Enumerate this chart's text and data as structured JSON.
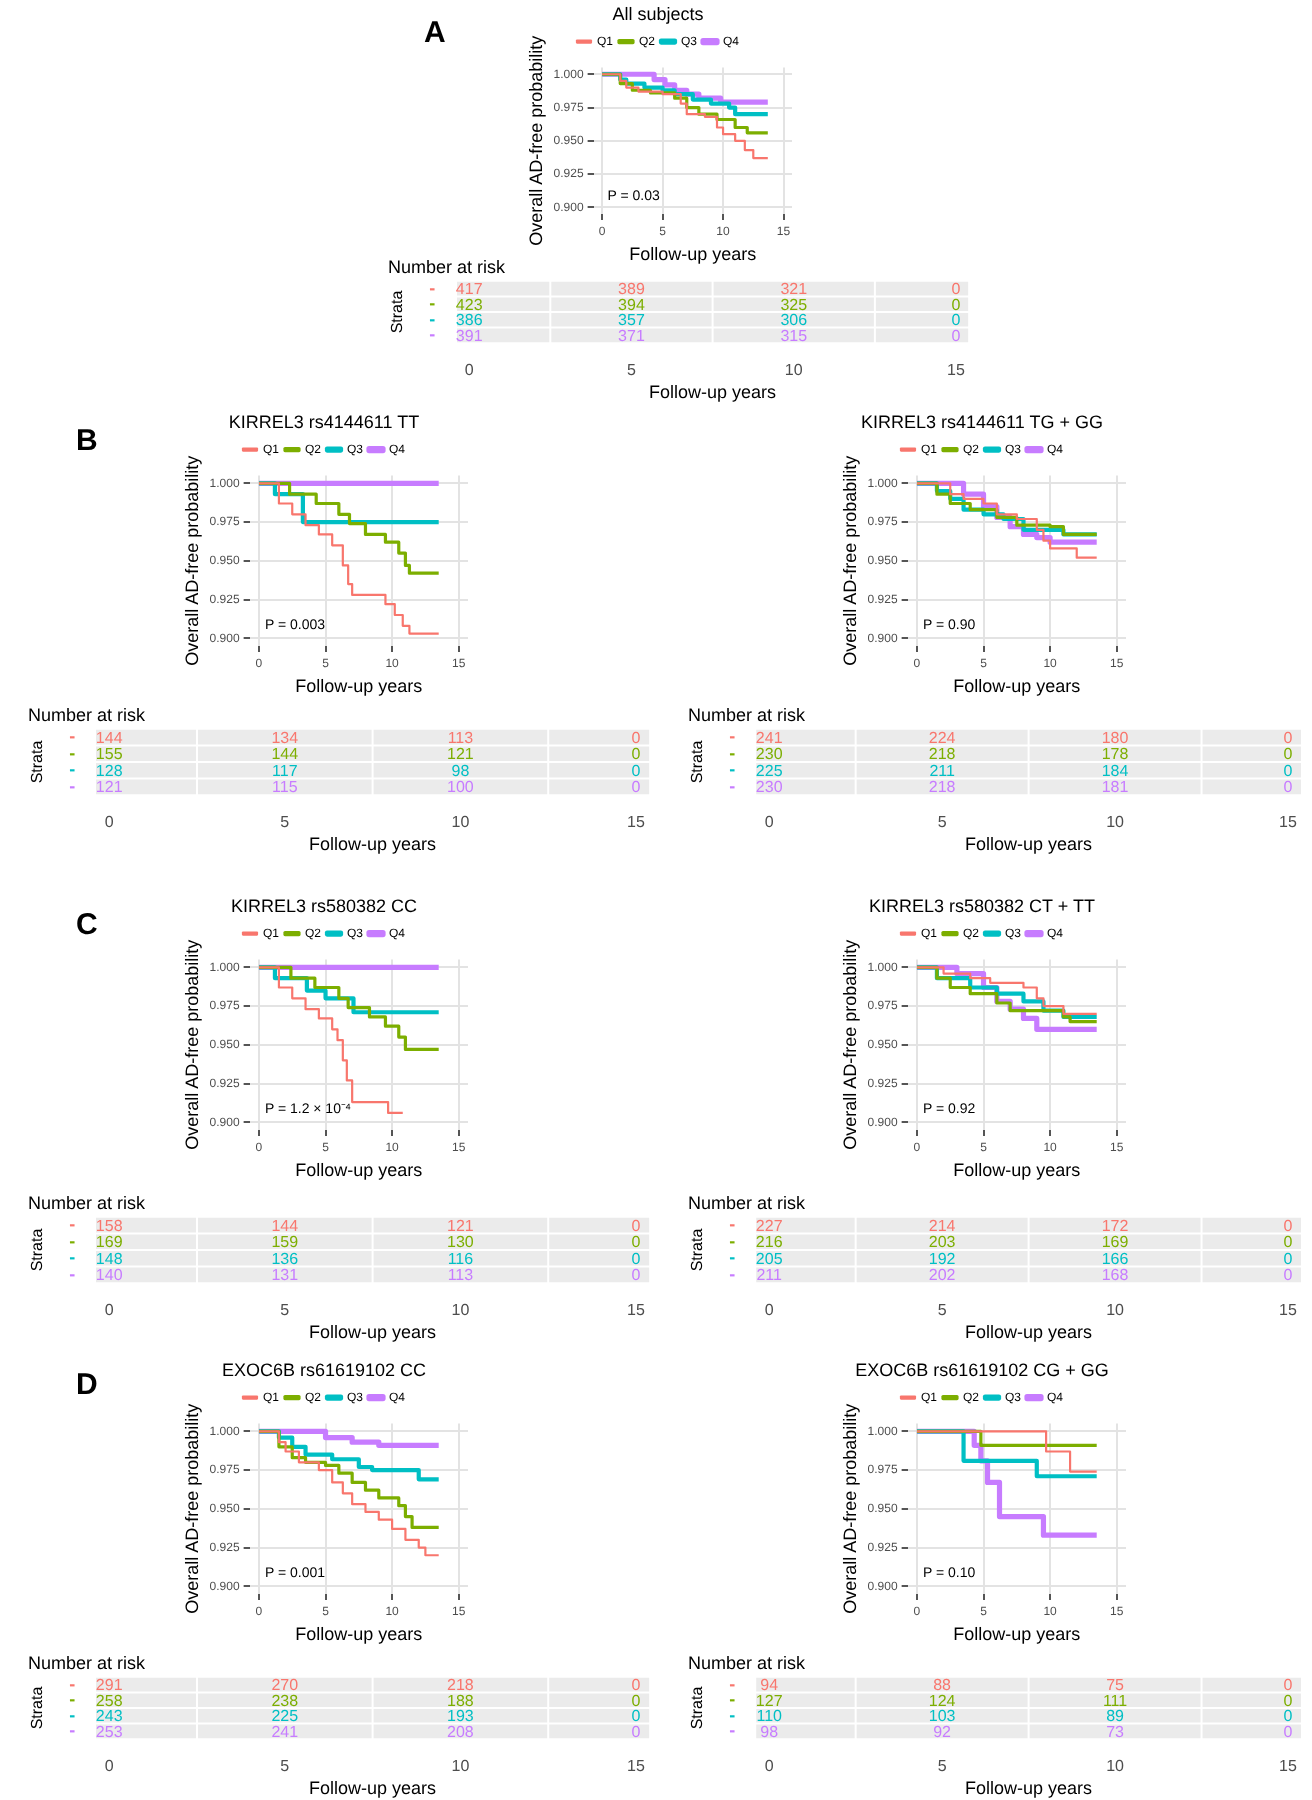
{
  "chart_data": [
    {
      "type": "step",
      "title": "All subjects",
      "xlabel": "Follow-up years",
      "ylabel": "Overall AD-free probability",
      "legend": "top",
      "grid": true,
      "xlim": [
        -0.7,
        15.7
      ],
      "ylim": [
        0.895,
        1.005
      ],
      "xticks": [
        0,
        5,
        10,
        15
      ],
      "yticks": [
        {
          "value": 0.9,
          "label": "0.900"
        },
        {
          "value": 0.925,
          "label": "0.925"
        },
        {
          "value": 0.95,
          "label": "0.950"
        },
        {
          "value": 0.975,
          "label": "0.975"
        },
        {
          "value": 1,
          "label": "1.000"
        }
      ],
      "annotations": [
        "A",
        "P = 0.03"
      ],
      "series": [
        {
          "name": "Q1",
          "color": "#f8766d",
          "x": [
            0,
            1.5,
            2,
            3,
            5,
            6.5,
            7,
            8.5,
            9.5,
            10,
            11,
            11.8,
            12.5,
            13.7
          ],
          "values": [
            1,
            0.995,
            0.99,
            0.987,
            0.985,
            0.978,
            0.97,
            0.968,
            0.96,
            0.955,
            0.95,
            0.943,
            0.937,
            0.937
          ]
        },
        {
          "name": "Q2",
          "color": "#7cae00",
          "x": [
            0,
            1.5,
            2.5,
            4,
            6,
            7,
            8,
            9.5,
            11,
            12,
            13.7
          ],
          "values": [
            1,
            0.993,
            0.988,
            0.986,
            0.982,
            0.975,
            0.97,
            0.966,
            0.96,
            0.956,
            0.956
          ]
        },
        {
          "name": "Q3",
          "color": "#00bfc4",
          "x": [
            0,
            1.5,
            2,
            3.5,
            5,
            6,
            7.5,
            9,
            10.5,
            11,
            13.7
          ],
          "values": [
            1,
            0.996,
            0.993,
            0.99,
            0.988,
            0.985,
            0.981,
            0.978,
            0.975,
            0.97,
            0.97
          ]
        },
        {
          "name": "Q4",
          "color": "#c77cff",
          "x": [
            0,
            4.3,
            5.2,
            6,
            7,
            8,
            9.8,
            13.7
          ],
          "values": [
            1,
            0.996,
            0.992,
            0.988,
            0.985,
            0.982,
            0.979,
            0.979
          ]
        }
      ]
    },
    {
      "type": "heatmap",
      "title": "Number at risk",
      "xlabel": "Follow-up years",
      "ylabel": "Strata",
      "categories": [
        "0",
        "5",
        "10",
        "15"
      ],
      "y_categories": [
        "-",
        "-",
        "-",
        "-"
      ],
      "colors": [
        "#f8766d",
        "#7cae00",
        "#00bfc4",
        "#c77cff"
      ],
      "data_labels": true,
      "cells": [
        [
          417,
          389,
          321,
          0
        ],
        [
          423,
          394,
          325,
          0
        ],
        [
          386,
          357,
          306,
          0
        ],
        [
          391,
          371,
          315,
          0
        ]
      ]
    },
    {
      "type": "step",
      "title": "KIRREL3 rs4144611 TT",
      "xlabel": "Follow-up years",
      "ylabel": "Overall AD-free probability",
      "legend": "top",
      "grid": true,
      "xlim": [
        -0.7,
        15.7
      ],
      "ylim": [
        0.895,
        1.005
      ],
      "xticks": [
        0,
        5,
        10,
        15
      ],
      "yticks": [
        {
          "value": 0.9,
          "label": "0.900"
        },
        {
          "value": 0.925,
          "label": "0.925"
        },
        {
          "value": 0.95,
          "label": "0.950"
        },
        {
          "value": 0.975,
          "label": "0.975"
        },
        {
          "value": 1,
          "label": "1.000"
        }
      ],
      "annotations": [
        "B",
        "P = 0.003"
      ],
      "series": [
        {
          "name": "Q1",
          "color": "#f8766d",
          "x": [
            0,
            1.5,
            2.5,
            3.5,
            4.5,
            5.5,
            6.3,
            6.7,
            7,
            9.5,
            10.2,
            10.8,
            11.3,
            13.5
          ],
          "values": [
            1,
            0.987,
            0.98,
            0.973,
            0.967,
            0.96,
            0.947,
            0.935,
            0.928,
            0.922,
            0.915,
            0.908,
            0.903,
            0.903
          ]
        },
        {
          "name": "Q2",
          "color": "#7cae00",
          "x": [
            0,
            2.3,
            4.3,
            6,
            6.8,
            8,
            9.5,
            10.5,
            11,
            11.3,
            13.5
          ],
          "values": [
            1,
            0.993,
            0.987,
            0.98,
            0.974,
            0.967,
            0.962,
            0.955,
            0.947,
            0.942,
            0.942
          ]
        },
        {
          "name": "Q3",
          "color": "#00bfc4",
          "x": [
            0,
            1.2,
            3.3,
            13.5
          ],
          "values": [
            1,
            0.993,
            0.975,
            0.975
          ]
        },
        {
          "name": "Q4",
          "color": "#c77cff",
          "x": [
            0,
            13.5
          ],
          "values": [
            1,
            1
          ]
        }
      ]
    },
    {
      "type": "step",
      "title": "KIRREL3 rs4144611 TG + GG",
      "xlabel": "Follow-up years",
      "ylabel": "Overall AD-free probability",
      "legend": "top",
      "grid": true,
      "xlim": [
        -0.7,
        15.7
      ],
      "ylim": [
        0.895,
        1.005
      ],
      "xticks": [
        0,
        5,
        10,
        15
      ],
      "yticks": [
        {
          "value": 0.9,
          "label": "0.900"
        },
        {
          "value": 0.925,
          "label": "0.925"
        },
        {
          "value": 0.95,
          "label": "0.950"
        },
        {
          "value": 0.975,
          "label": "0.975"
        },
        {
          "value": 1,
          "label": "1.000"
        }
      ],
      "annotations": [
        "P = 0.90"
      ],
      "series": [
        {
          "name": "Q1",
          "color": "#f8766d",
          "x": [
            0,
            2.5,
            3.5,
            5,
            6,
            7.5,
            9,
            9.5,
            10,
            12,
            13.5
          ],
          "values": [
            1,
            0.993,
            0.99,
            0.987,
            0.98,
            0.977,
            0.97,
            0.963,
            0.958,
            0.952,
            0.952
          ]
        },
        {
          "name": "Q2",
          "color": "#7cae00",
          "x": [
            0,
            1.5,
            2.5,
            4,
            6,
            7.5,
            10,
            11,
            13.5
          ],
          "values": [
            1,
            0.993,
            0.987,
            0.983,
            0.978,
            0.973,
            0.972,
            0.967,
            0.967
          ]
        },
        {
          "name": "Q3",
          "color": "#00bfc4",
          "x": [
            0,
            1.5,
            2.5,
            3.5,
            5,
            6.5,
            8,
            11,
            13.5
          ],
          "values": [
            1,
            0.995,
            0.99,
            0.983,
            0.98,
            0.977,
            0.97,
            0.967,
            0.967
          ]
        },
        {
          "name": "Q4",
          "color": "#c77cff",
          "x": [
            0,
            3.5,
            5,
            6,
            7,
            8,
            9,
            10,
            13.5
          ],
          "values": [
            1,
            0.993,
            0.985,
            0.978,
            0.972,
            0.967,
            0.965,
            0.962,
            0.962
          ]
        }
      ]
    },
    {
      "type": "heatmap",
      "title": "Number at risk",
      "xlabel": "Follow-up years",
      "ylabel": "Strata",
      "categories": [
        "0",
        "5",
        "10",
        "15"
      ],
      "y_categories": [
        "-",
        "-",
        "-",
        "-"
      ],
      "colors": [
        "#f8766d",
        "#7cae00",
        "#00bfc4",
        "#c77cff"
      ],
      "data_labels": true,
      "cells": [
        [
          144,
          134,
          113,
          0
        ],
        [
          155,
          144,
          121,
          0
        ],
        [
          128,
          117,
          98,
          0
        ],
        [
          121,
          115,
          100,
          0
        ]
      ]
    },
    {
      "type": "heatmap",
      "title": "Number at risk",
      "xlabel": "Follow-up years",
      "ylabel": "Strata",
      "categories": [
        "0",
        "5",
        "10",
        "15"
      ],
      "y_categories": [
        "-",
        "-",
        "-",
        "-"
      ],
      "colors": [
        "#f8766d",
        "#7cae00",
        "#00bfc4",
        "#c77cff"
      ],
      "data_labels": true,
      "cells": [
        [
          241,
          224,
          180,
          0
        ],
        [
          230,
          218,
          178,
          0
        ],
        [
          225,
          211,
          184,
          0
        ],
        [
          230,
          218,
          181,
          0
        ]
      ]
    },
    {
      "type": "step",
      "title": "KIRREL3 rs580382 CC",
      "xlabel": "Follow-up years",
      "ylabel": "Overall AD-free probability",
      "legend": "top",
      "grid": true,
      "xlim": [
        -0.7,
        15.7
      ],
      "ylim": [
        0.895,
        1.005
      ],
      "xticks": [
        0,
        5,
        10,
        15
      ],
      "yticks": [
        {
          "value": 0.9,
          "label": "0.900"
        },
        {
          "value": 0.925,
          "label": "0.925"
        },
        {
          "value": 0.95,
          "label": "0.950"
        },
        {
          "value": 0.975,
          "label": "0.975"
        },
        {
          "value": 1,
          "label": "1.000"
        }
      ],
      "annotations": [
        "C",
        "P = 1.2 × 10⁻⁴"
      ],
      "series": [
        {
          "name": "Q1",
          "color": "#f8766d",
          "x": [
            0,
            1.5,
            2.5,
            3.5,
            4.5,
            5.5,
            5.9,
            6.3,
            6.6,
            7,
            9.7,
            10.8
          ],
          "values": [
            1,
            0.987,
            0.98,
            0.973,
            0.967,
            0.96,
            0.953,
            0.94,
            0.927,
            0.913,
            0.906,
            0.906
          ]
        },
        {
          "name": "Q2",
          "color": "#7cae00",
          "x": [
            0,
            2.4,
            4.2,
            6,
            6.7,
            8.3,
            9.5,
            10.5,
            11,
            13.5
          ],
          "values": [
            1,
            0.993,
            0.987,
            0.98,
            0.974,
            0.968,
            0.962,
            0.955,
            0.947,
            0.947
          ]
        },
        {
          "name": "Q3",
          "color": "#00bfc4",
          "x": [
            0,
            1.2,
            3.6,
            5,
            7.1,
            13.5
          ],
          "values": [
            1,
            0.993,
            0.985,
            0.98,
            0.971,
            0.971
          ]
        },
        {
          "name": "Q4",
          "color": "#c77cff",
          "x": [
            0,
            13.5
          ],
          "values": [
            1,
            1
          ]
        }
      ]
    },
    {
      "type": "step",
      "title": "KIRREL3 rs580382 CT + TT",
      "xlabel": "Follow-up years",
      "ylabel": "Overall AD-free probability",
      "legend": "top",
      "grid": true,
      "xlim": [
        -0.7,
        15.7
      ],
      "ylim": [
        0.895,
        1.005
      ],
      "xticks": [
        0,
        5,
        10,
        15
      ],
      "yticks": [
        {
          "value": 0.9,
          "label": "0.900"
        },
        {
          "value": 0.925,
          "label": "0.925"
        },
        {
          "value": 0.95,
          "label": "0.950"
        },
        {
          "value": 0.975,
          "label": "0.975"
        },
        {
          "value": 1,
          "label": "1.000"
        }
      ],
      "annotations": [
        "P = 0.92"
      ],
      "series": [
        {
          "name": "Q1",
          "color": "#f8766d",
          "x": [
            0,
            2,
            4,
            5.5,
            8,
            9,
            9.5,
            11,
            13.5
          ],
          "values": [
            1,
            0.996,
            0.993,
            0.99,
            0.987,
            0.98,
            0.975,
            0.97,
            0.97
          ]
        },
        {
          "name": "Q2",
          "color": "#7cae00",
          "x": [
            0,
            1.5,
            2.5,
            4,
            6,
            7,
            11,
            11.5,
            13.5
          ],
          "values": [
            1,
            0.993,
            0.987,
            0.983,
            0.977,
            0.972,
            0.968,
            0.965,
            0.965
          ]
        },
        {
          "name": "Q3",
          "color": "#00bfc4",
          "x": [
            0,
            1.5,
            4,
            6,
            8,
            9.5,
            11,
            13.5
          ],
          "values": [
            1,
            0.993,
            0.987,
            0.983,
            0.978,
            0.972,
            0.968,
            0.968
          ]
        },
        {
          "name": "Q4",
          "color": "#c77cff",
          "x": [
            0,
            3,
            5,
            6,
            7,
            8,
            9,
            13.5
          ],
          "values": [
            1,
            0.996,
            0.987,
            0.978,
            0.973,
            0.967,
            0.96,
            0.96
          ]
        }
      ]
    },
    {
      "type": "heatmap",
      "title": "Number at risk",
      "xlabel": "Follow-up years",
      "ylabel": "Strata",
      "categories": [
        "0",
        "5",
        "10",
        "15"
      ],
      "y_categories": [
        "-",
        "-",
        "-",
        "-"
      ],
      "colors": [
        "#f8766d",
        "#7cae00",
        "#00bfc4",
        "#c77cff"
      ],
      "data_labels": true,
      "cells": [
        [
          158,
          144,
          121,
          0
        ],
        [
          169,
          159,
          130,
          0
        ],
        [
          148,
          136,
          116,
          0
        ],
        [
          140,
          131,
          113,
          0
        ]
      ]
    },
    {
      "type": "heatmap",
      "title": "Number at risk",
      "xlabel": "Follow-up years",
      "ylabel": "Strata",
      "categories": [
        "0",
        "5",
        "10",
        "15"
      ],
      "y_categories": [
        "-",
        "-",
        "-",
        "-"
      ],
      "colors": [
        "#f8766d",
        "#7cae00",
        "#00bfc4",
        "#c77cff"
      ],
      "data_labels": true,
      "cells": [
        [
          227,
          214,
          172,
          0
        ],
        [
          216,
          203,
          169,
          0
        ],
        [
          205,
          192,
          166,
          0
        ],
        [
          211,
          202,
          168,
          0
        ]
      ]
    },
    {
      "type": "step",
      "title": "EXOC6B rs61619102 CC",
      "xlabel": "Follow-up years",
      "ylabel": "Overall AD-free probability",
      "legend": "top",
      "grid": true,
      "xlim": [
        -0.7,
        15.7
      ],
      "ylim": [
        0.895,
        1.005
      ],
      "xticks": [
        0,
        5,
        10,
        15
      ],
      "yticks": [
        {
          "value": 0.9,
          "label": "0.900"
        },
        {
          "value": 0.925,
          "label": "0.925"
        },
        {
          "value": 0.95,
          "label": "0.950"
        },
        {
          "value": 0.975,
          "label": "0.975"
        },
        {
          "value": 1,
          "label": "1.000"
        }
      ],
      "annotations": [
        "D",
        "P = 0.001"
      ],
      "series": [
        {
          "name": "Q1",
          "color": "#f8766d",
          "x": [
            0,
            1.5,
            2,
            3,
            4.5,
            5.5,
            6.3,
            7,
            8,
            9,
            10,
            11,
            12,
            12.5,
            13.5
          ],
          "values": [
            1,
            0.993,
            0.987,
            0.98,
            0.975,
            0.967,
            0.96,
            0.953,
            0.948,
            0.943,
            0.937,
            0.93,
            0.925,
            0.92,
            0.92
          ]
        },
        {
          "name": "Q2",
          "color": "#7cae00",
          "x": [
            0,
            1.5,
            2.5,
            3.5,
            5,
            6,
            7,
            8,
            9,
            10.5,
            11,
            11.5,
            13.5
          ],
          "values": [
            1,
            0.99,
            0.983,
            0.98,
            0.978,
            0.973,
            0.967,
            0.962,
            0.957,
            0.952,
            0.945,
            0.938,
            0.938
          ]
        },
        {
          "name": "Q3",
          "color": "#00bfc4",
          "x": [
            0,
            1.5,
            2.5,
            3.5,
            5.5,
            7.5,
            8.5,
            12,
            13.5
          ],
          "values": [
            1,
            0.996,
            0.99,
            0.985,
            0.982,
            0.977,
            0.975,
            0.969,
            0.969
          ]
        },
        {
          "name": "Q4",
          "color": "#c77cff",
          "x": [
            0,
            5,
            7,
            9,
            13.5
          ],
          "values": [
            1,
            0.996,
            0.993,
            0.991,
            0.991
          ]
        }
      ]
    },
    {
      "type": "step",
      "title": "EXOC6B rs61619102 CG + GG",
      "xlabel": "Follow-up years",
      "ylabel": "Overall AD-free probability",
      "legend": "top",
      "grid": true,
      "xlim": [
        -0.7,
        15.7
      ],
      "ylim": [
        0.895,
        1.005
      ],
      "xticks": [
        0,
        5,
        10,
        15
      ],
      "yticks": [
        {
          "value": 0.9,
          "label": "0.900"
        },
        {
          "value": 0.925,
          "label": "0.925"
        },
        {
          "value": 0.95,
          "label": "0.950"
        },
        {
          "value": 0.975,
          "label": "0.975"
        },
        {
          "value": 1,
          "label": "1.000"
        }
      ],
      "annotations": [
        "P = 0.10"
      ],
      "series": [
        {
          "name": "Q1",
          "color": "#f8766d",
          "x": [
            0,
            9.7,
            11.5,
            13.5
          ],
          "values": [
            1,
            0.987,
            0.974,
            0.974
          ]
        },
        {
          "name": "Q2",
          "color": "#7cae00",
          "x": [
            0,
            4.8,
            13.5
          ],
          "values": [
            1,
            0.991,
            0.991
          ]
        },
        {
          "name": "Q3",
          "color": "#00bfc4",
          "x": [
            0,
            3.5,
            9,
            13.5
          ],
          "values": [
            1,
            0.981,
            0.971,
            0.971
          ]
        },
        {
          "name": "Q4",
          "color": "#c77cff",
          "x": [
            0,
            4.3,
            4.8,
            5.3,
            6.2,
            9.5,
            13.5
          ],
          "values": [
            1,
            0.991,
            0.981,
            0.967,
            0.945,
            0.933,
            0.933
          ]
        }
      ]
    },
    {
      "type": "heatmap",
      "title": "Number at risk",
      "xlabel": "Follow-up years",
      "ylabel": "Strata",
      "categories": [
        "0",
        "5",
        "10",
        "15"
      ],
      "y_categories": [
        "-",
        "-",
        "-",
        "-"
      ],
      "colors": [
        "#f8766d",
        "#7cae00",
        "#00bfc4",
        "#c77cff"
      ],
      "data_labels": true,
      "cells": [
        [
          291,
          270,
          218,
          0
        ],
        [
          258,
          238,
          188,
          0
        ],
        [
          243,
          225,
          193,
          0
        ],
        [
          253,
          241,
          208,
          0
        ]
      ]
    },
    {
      "type": "heatmap",
      "title": "Number at risk",
      "xlabel": "Follow-up years",
      "ylabel": "Strata",
      "categories": [
        "0",
        "5",
        "10",
        "15"
      ],
      "y_categories": [
        "-",
        "-",
        "-",
        "-"
      ],
      "colors": [
        "#f8766d",
        "#7cae00",
        "#00bfc4",
        "#c77cff"
      ],
      "data_labels": true,
      "cells": [
        [
          94,
          88,
          75,
          0
        ],
        [
          127,
          124,
          111,
          0
        ],
        [
          110,
          103,
          89,
          0
        ],
        [
          98,
          92,
          73,
          0
        ]
      ]
    }
  ]
}
